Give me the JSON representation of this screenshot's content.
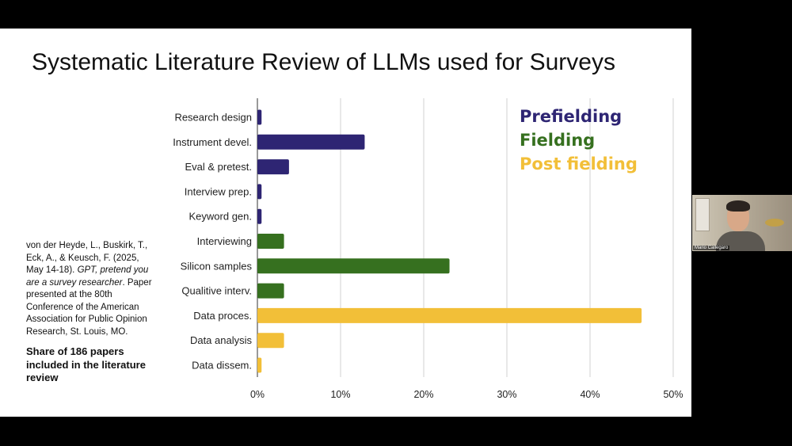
{
  "slide": {
    "title": "Systematic Literature Review of LLMs used for Surveys",
    "citation_plain_1": "von der Heyde, L., Buskirk, T., Eck, A., & Keusch, F. (2025, May 14-18). ",
    "citation_italic": "GPT, pretend you are a survey researcher",
    "citation_plain_2": ". Paper presented at the 80th Conference of the American Association for Public Opinion Research, St. Louis, MO.",
    "share_note": "Share of 186 papers included in the literature review"
  },
  "legend": [
    {
      "label": "Prefielding",
      "color": "#2e2573"
    },
    {
      "label": "Fielding",
      "color": "#36701f"
    },
    {
      "label": "Post fielding",
      "color": "#f2bf38"
    }
  ],
  "video": {
    "participant_name": "Mario Callegaro"
  },
  "chart_data": {
    "type": "bar",
    "orientation": "horizontal",
    "categories": [
      "Research design",
      "Instrument devel.",
      "Eval & pretest.",
      "Interview prep.",
      "Keyword gen.",
      "Interviewing",
      "Silicon samples",
      "Qualitive interv.",
      "Data proces.",
      "Data analysis",
      "Data dissem."
    ],
    "values": [
      0.5,
      12.9,
      3.8,
      0.5,
      0.5,
      3.2,
      23.1,
      3.2,
      46.2,
      3.2,
      0.5
    ],
    "groups": [
      "Prefielding",
      "Prefielding",
      "Prefielding",
      "Prefielding",
      "Prefielding",
      "Fielding",
      "Fielding",
      "Fielding",
      "Post fielding",
      "Post fielding",
      "Post fielding"
    ],
    "colors": {
      "Prefielding": "#2e2573",
      "Fielding": "#36701f",
      "Post fielding": "#f2bf38"
    },
    "xlim": [
      0,
      50
    ],
    "xticks": [
      0,
      10,
      20,
      30,
      40,
      50
    ],
    "xtick_labels": [
      "0%",
      "10%",
      "20%",
      "30%",
      "40%",
      "50%"
    ],
    "grid": true,
    "legend_position": "top-right"
  }
}
